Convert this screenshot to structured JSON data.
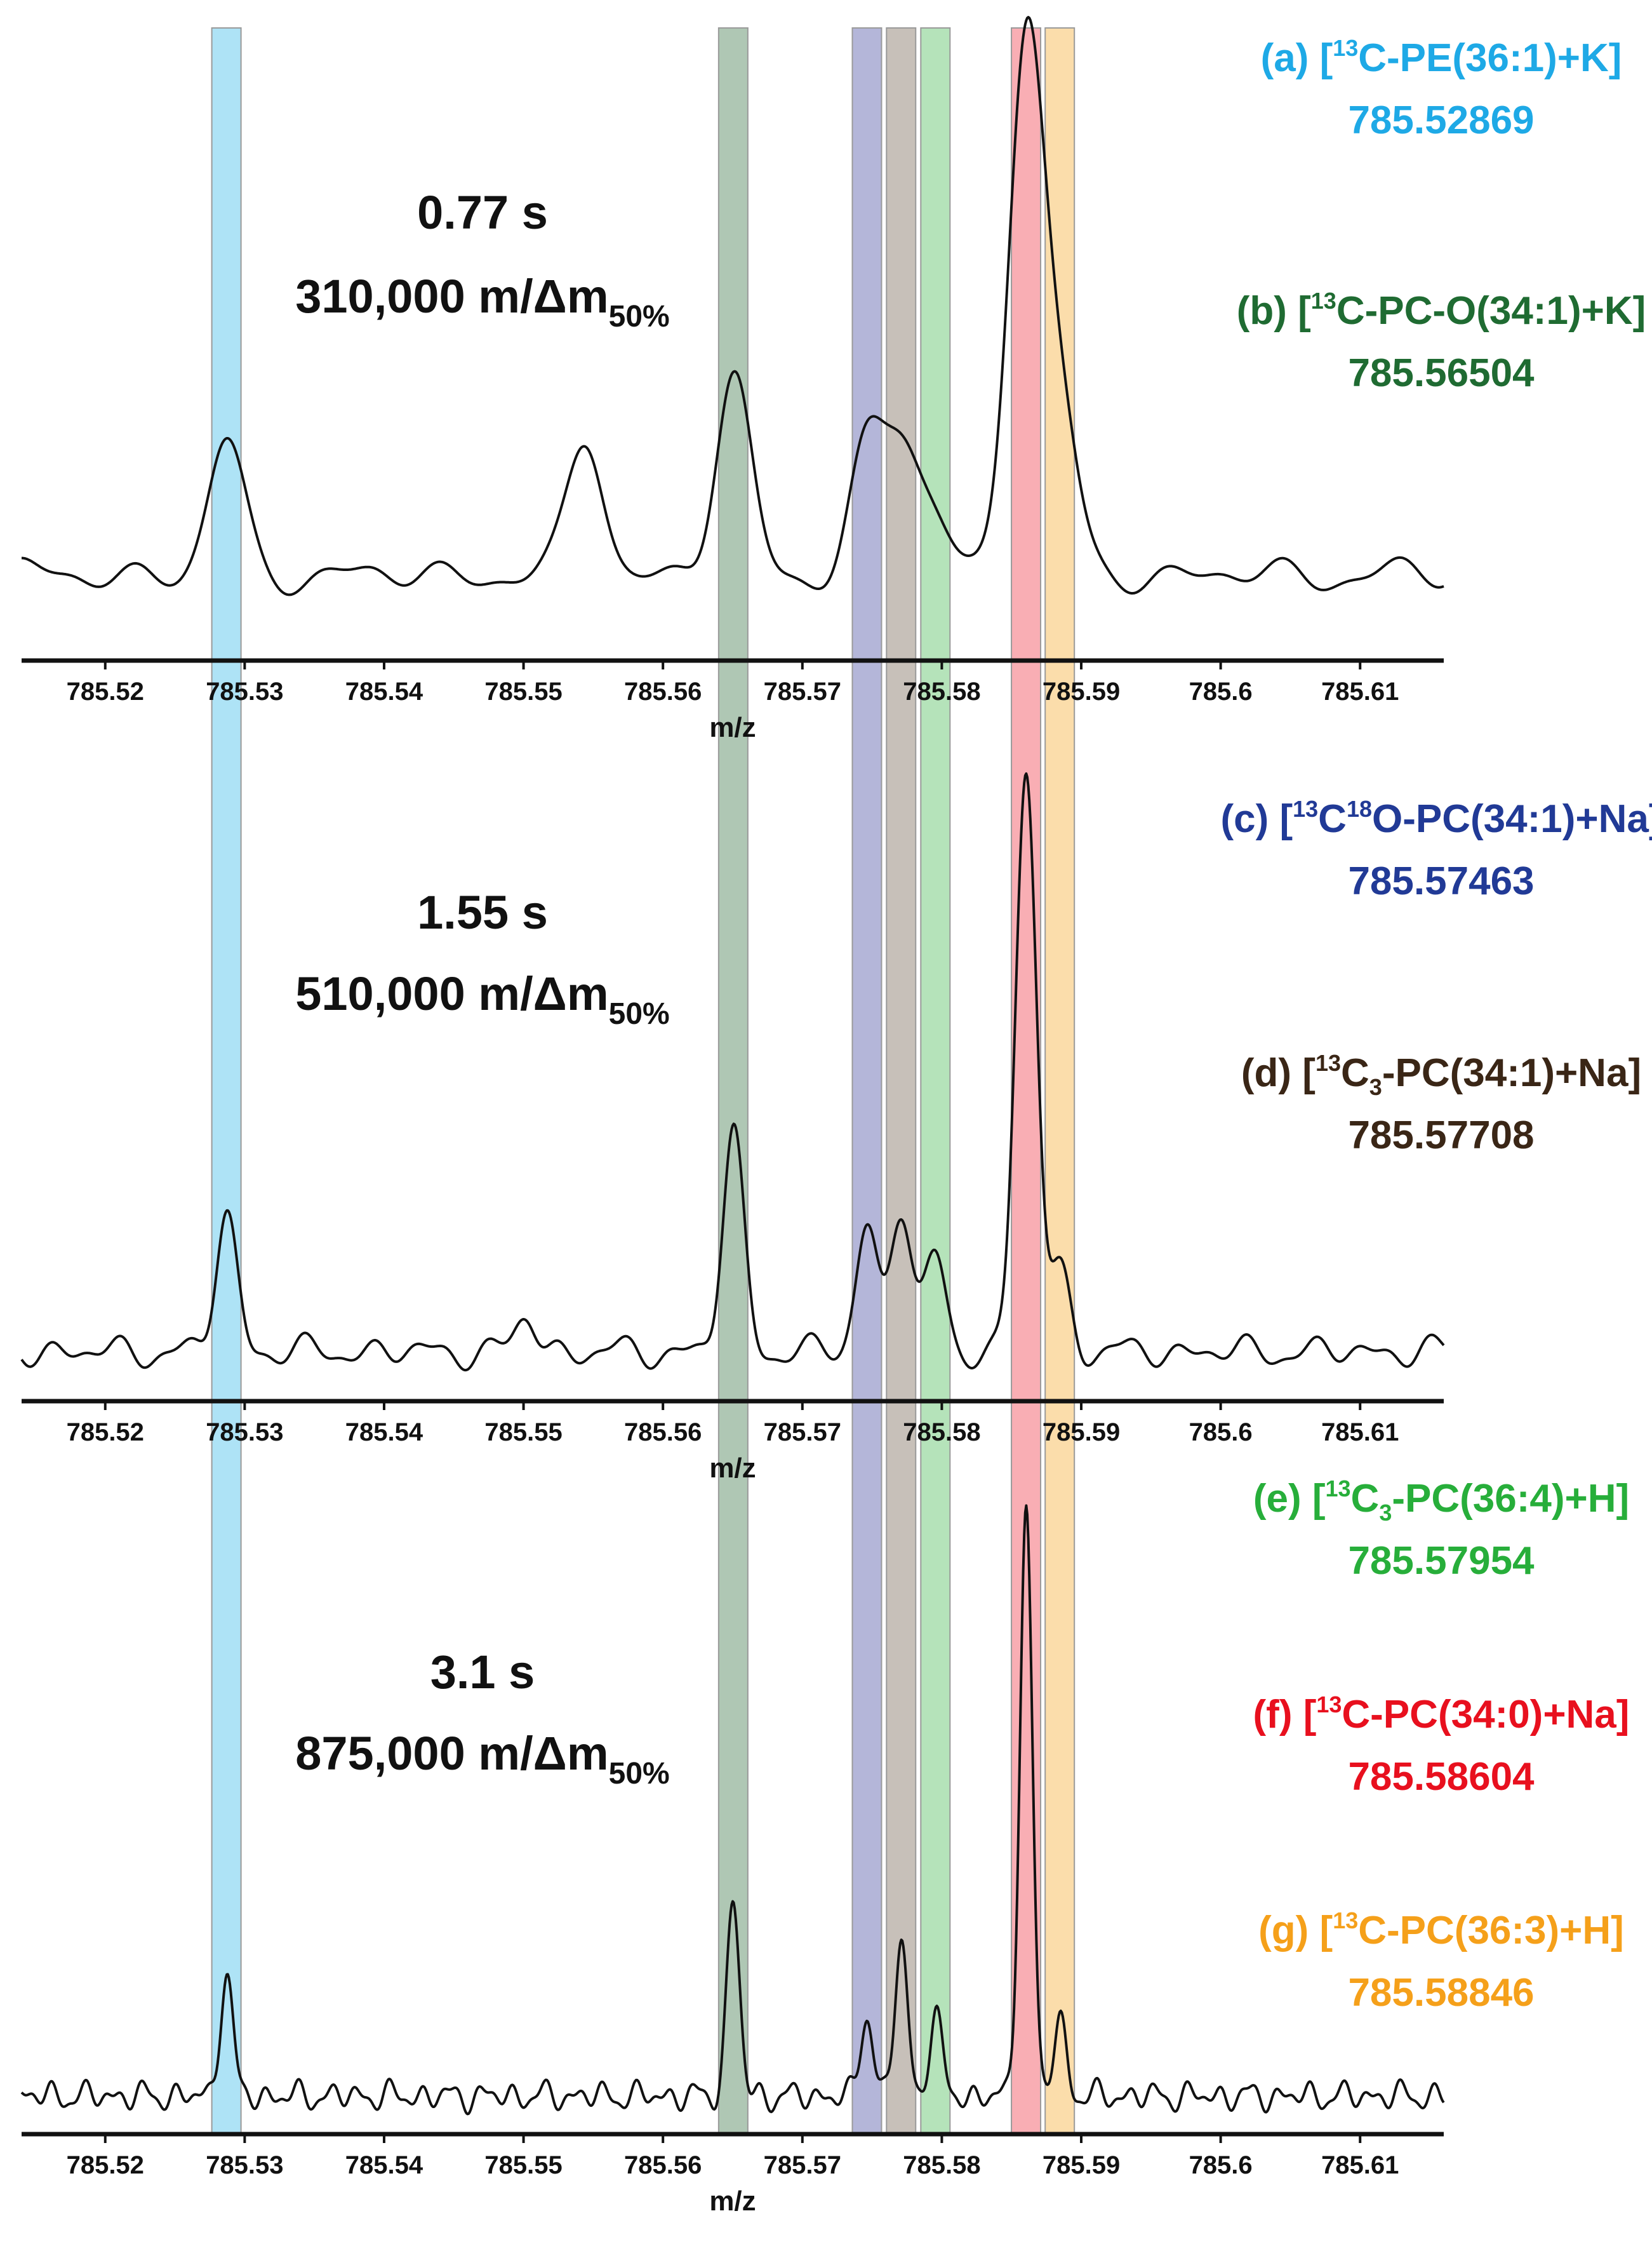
{
  "chart_data": {
    "type": "line",
    "xlabel": "m/z",
    "xlim": [
      785.514,
      785.616
    ],
    "xticks": [
      785.52,
      785.53,
      785.54,
      785.55,
      785.56,
      785.57,
      785.58,
      785.59,
      785.6,
      785.61
    ],
    "xtick_labels": [
      "785.52",
      "785.53",
      "785.54",
      "785.55",
      "785.56",
      "785.57",
      "785.58",
      "785.59",
      "785.6",
      "785.61"
    ],
    "highlight_bands": [
      {
        "id": "a",
        "center": 785.52869,
        "color": "#29B6E8"
      },
      {
        "id": "b",
        "center": 785.56504,
        "color": "#2E6B3A"
      },
      {
        "id": "c",
        "center": 785.57463,
        "color": "#3A3F9A"
      },
      {
        "id": "d",
        "center": 785.57708,
        "color": "#6B5A48"
      },
      {
        "id": "e",
        "center": 785.57954,
        "color": "#3DB54A"
      },
      {
        "id": "f",
        "center": 785.58604,
        "color": "#EE2A3A"
      },
      {
        "id": "g",
        "center": 785.58846,
        "color": "#F5A623"
      }
    ],
    "panels": [
      {
        "id": "p1",
        "time_label": "0.77 s",
        "resolution_label": "310,000 m/Δm",
        "resolution_sub": "50%",
        "peak_width": 0.00125,
        "noise_amp": 0.035,
        "noise_period": 0.0075,
        "peaks": [
          {
            "x": 785.52869,
            "h": 0.24
          },
          {
            "x": 785.5545,
            "h": 0.25
          },
          {
            "x": 785.56504,
            "h": 0.36
          },
          {
            "x": 785.57463,
            "h": 0.22
          },
          {
            "x": 785.57708,
            "h": 0.22
          },
          {
            "x": 785.57954,
            "h": 0.1
          },
          {
            "x": 785.58604,
            "h": 1.0
          },
          {
            "x": 785.58846,
            "h": 0.28
          }
        ]
      },
      {
        "id": "p2",
        "time_label": "1.55 s",
        "resolution_label": "510,000 m/Δm",
        "resolution_sub": "50%",
        "peak_width": 0.00075,
        "noise_amp": 0.03,
        "noise_period": 0.0045,
        "peaks": [
          {
            "x": 785.52869,
            "h": 0.24
          },
          {
            "x": 785.5502,
            "h": 0.06
          },
          {
            "x": 785.56504,
            "h": 0.38
          },
          {
            "x": 785.57463,
            "h": 0.22
          },
          {
            "x": 785.57708,
            "h": 0.25
          },
          {
            "x": 785.57954,
            "h": 0.16
          },
          {
            "x": 785.58604,
            "h": 1.0
          },
          {
            "x": 785.58846,
            "h": 0.14
          }
        ]
      },
      {
        "id": "p3",
        "time_label": "3.1 s",
        "resolution_label": "875,000 m/Δm",
        "resolution_sub": "50%",
        "peak_width": 0.00045,
        "noise_amp": 0.028,
        "noise_period": 0.0022,
        "peaks": [
          {
            "x": 785.52869,
            "h": 0.21
          },
          {
            "x": 785.56504,
            "h": 0.33
          },
          {
            "x": 785.57463,
            "h": 0.14
          },
          {
            "x": 785.57708,
            "h": 0.26
          },
          {
            "x": 785.57954,
            "h": 0.14
          },
          {
            "x": 785.58604,
            "h": 1.0
          },
          {
            "x": 785.58846,
            "h": 0.13
          }
        ]
      }
    ],
    "annotations": [
      {
        "id": "a",
        "tag": "(a)",
        "iso": "13",
        "formula": "C-PE(36:1)+K",
        "formula_sub": "",
        "formula_tail": "",
        "mass": "785.52869",
        "color": "#1EA9E6"
      },
      {
        "id": "b",
        "tag": "(b)",
        "iso": "13",
        "formula": "C-PC-O(34:1)+K",
        "formula_sub": "",
        "formula_tail": "",
        "mass": "785.56504",
        "color": "#1F6B32"
      },
      {
        "id": "c",
        "tag": "(c)",
        "iso": "13",
        "formula": "C",
        "iso2": "18",
        "formula2": "O-PC(34:1)+Na",
        "formula_sub": "",
        "formula_tail": "",
        "mass": "785.57463",
        "color": "#213A96"
      },
      {
        "id": "d",
        "tag": "(d)",
        "iso": "13",
        "formula": "C",
        "formula_sub": "3",
        "formula_tail": "-PC(34:1)+Na",
        "mass": "785.57708",
        "color": "#3A2616"
      },
      {
        "id": "e",
        "tag": "(e)",
        "iso": "13",
        "formula": "C",
        "formula_sub": "3",
        "formula_tail": "-PC(36:4)+H",
        "mass": "785.57954",
        "color": "#27AE3A"
      },
      {
        "id": "f",
        "tag": "(f)",
        "iso": "13",
        "formula": "C-PC(34:0)+Na",
        "formula_sub": "",
        "formula_tail": "",
        "mass": "785.58604",
        "color": "#E8101E"
      },
      {
        "id": "g",
        "tag": "(g)",
        "iso": "13",
        "formula": "C-PC(36:3)+H",
        "formula_sub": "",
        "formula_tail": "",
        "mass": "785.58846",
        "color": "#F5A01A"
      }
    ]
  }
}
